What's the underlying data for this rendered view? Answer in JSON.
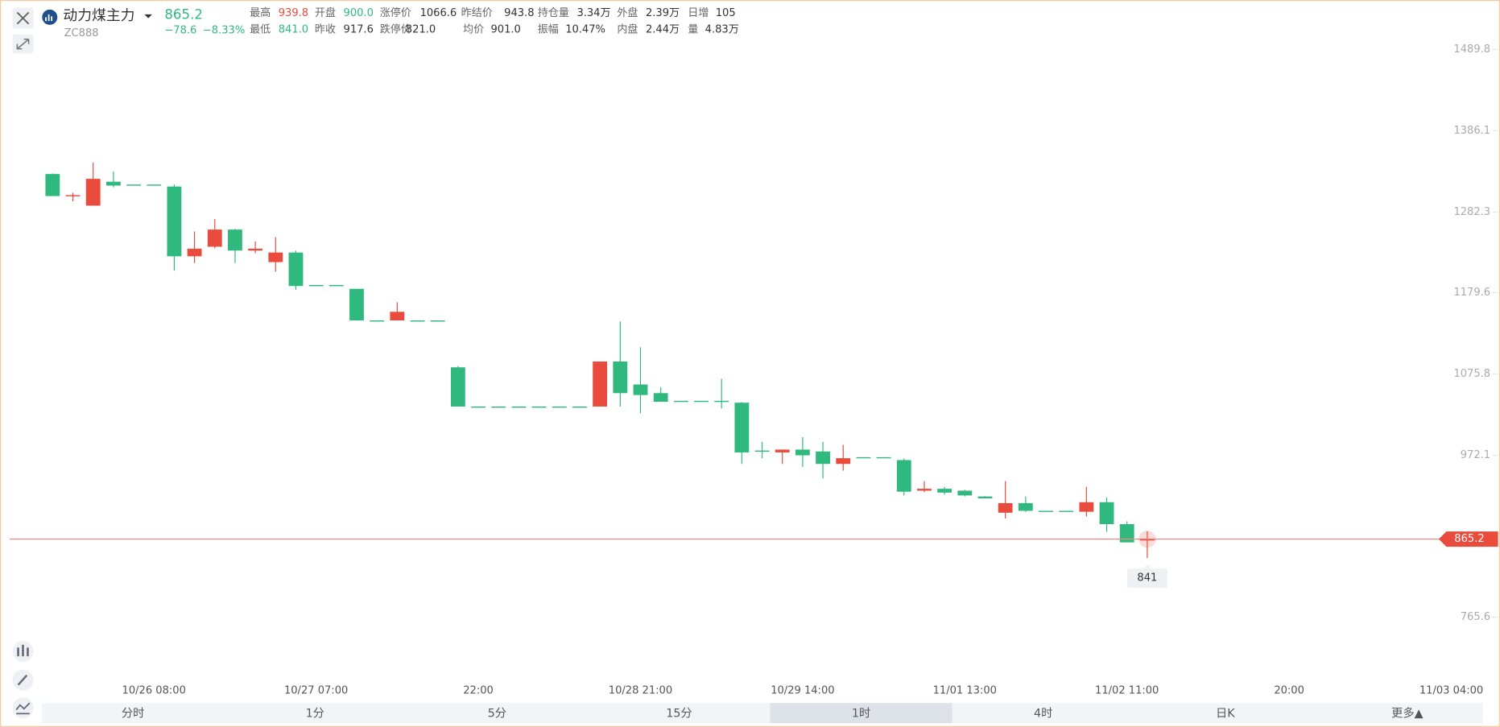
{
  "quote": {
    "name": "动力煤主力",
    "last": "865.2",
    "code": "ZC888",
    "change": "−78.6",
    "change_pct": "−8.33%",
    "stats": [
      [
        "最高",
        "939.8"
      ],
      [
        "开盘",
        "900.0"
      ],
      [
        "涨停价",
        "1066.6"
      ],
      [
        "昨结价",
        "943.8"
      ],
      [
        "持仓量",
        "3.34万"
      ],
      [
        "外盘",
        "2.39万"
      ],
      [
        "日增",
        "105"
      ],
      [
        "最低",
        "841.0"
      ],
      [
        "昨收",
        "917.6"
      ],
      [
        "跌停价",
        "821.0"
      ],
      [
        "均价",
        "901.0"
      ],
      [
        "振幅",
        "10.47%"
      ],
      [
        "内盘",
        "2.44万"
      ],
      [
        "量",
        "4.83万"
      ]
    ]
  },
  "tabs": [
    "分时",
    "1分",
    "5分",
    "15分",
    "1时",
    "4时",
    "日K",
    "更多▲"
  ],
  "active_tab": 4,
  "chart_data": {
    "type": "candlestick",
    "up_color": "#e94b3c",
    "down_color": "#2fb97e",
    "ylim": [
      686.6,
      1543.0
    ],
    "yticks": [
      765.6,
      972.1,
      1075.8,
      1179.6,
      1282.3,
      1386.1,
      1489.8
    ],
    "categories": [
      null,
      null,
      null,
      null,
      null,
      "10/26 08:00",
      null,
      null,
      null,
      null,
      null,
      null,
      null,
      "10/27 07:00",
      null,
      null,
      null,
      null,
      null,
      null,
      null,
      "22:00",
      null,
      null,
      null,
      null,
      null,
      null,
      null,
      "10/28 21:00",
      null,
      null,
      null,
      null,
      null,
      null,
      null,
      "10/29 14:00",
      null,
      null,
      null,
      null,
      null,
      null,
      null,
      "11/01 13:00",
      null,
      null,
      null,
      null,
      null,
      null,
      null,
      "11/02 11:00",
      null,
      null,
      null,
      null,
      null,
      null,
      null,
      "20:00",
      null,
      null,
      null,
      null,
      null,
      null,
      null,
      "11/03 04:00"
    ],
    "open": [
      1330.8,
      1302.7,
      1290.5,
      1321.0,
      1317.4,
      1317.4,
      1314.9,
      1225.9,
      1238.1,
      1260.0,
      1233.2,
      1218.5,
      1230.7,
      1189.3,
      1189.3,
      1184.4,
      1144.1,
      1144.1,
      1144.1,
      1144.1,
      1084.3,
      1034.3,
      1034.3,
      1034.3,
      1034.3,
      1034.3,
      1034.3,
      1034.3,
      1091.7,
      1062.4,
      1051.4,
      1041.6,
      1041.6,
      1041.6,
      1039.2,
      978.2,
      975.8,
      979.4,
      977.0,
      961.1,
      969.7,
      969.7,
      966.0,
      927.0,
      929.4,
      927.0,
      919.6,
      898.9,
      911.1,
      901.3,
      901.3,
      900.1,
      912.3,
      884.3,
      863.5,
      null,
      null,
      null,
      null,
      null,
      null,
      null,
      null,
      null,
      null,
      null,
      null,
      null,
      null,
      null
    ],
    "high": [
      1331.5,
      1307.0,
      1345.4,
      1334.0,
      1317.4,
      1317.4,
      1317.4,
      1257.6,
      1273.4,
      1261.0,
      1245.0,
      1250.3,
      1233.2,
      1189.3,
      1189.3,
      1184.4,
      1144.1,
      1167.3,
      1144.1,
      1144.1,
      1086.0,
      1034.3,
      1034.3,
      1034.3,
      1034.3,
      1034.3,
      1034.3,
      1091.7,
      1142.9,
      1110.0,
      1058.7,
      1041.6,
      1041.6,
      1069.7,
      1040.0,
      989.2,
      979.4,
      995.3,
      989.2,
      985.5,
      969.7,
      969.7,
      968.0,
      939.2,
      932.0,
      928.0,
      920.0,
      939.2,
      919.6,
      901.3,
      901.3,
      931.8,
      918.4,
      887.9,
      875.0,
      null,
      null,
      null,
      null,
      null,
      null,
      null,
      null,
      null,
      null,
      null,
      null,
      null,
      null,
      null
    ],
    "low": [
      1302.7,
      1296.0,
      1290.5,
      1314.0,
      1317.4,
      1317.4,
      1207.6,
      1217.3,
      1236.0,
      1217.3,
      1230.0,
      1206.3,
      1183.2,
      1189.3,
      1189.3,
      1144.1,
      1144.1,
      1144.1,
      1144.1,
      1144.1,
      1034.3,
      1034.3,
      1034.3,
      1034.3,
      1034.3,
      1034.3,
      1034.3,
      1034.3,
      1034.3,
      1025.8,
      1040.4,
      1041.6,
      1041.6,
      1031.9,
      961.1,
      968.4,
      961.1,
      957.5,
      942.8,
      952.6,
      969.7,
      969.7,
      920.9,
      925.0,
      922.0,
      919.6,
      917.2,
      891.6,
      900.0,
      901.3,
      901.3,
      894.0,
      874.5,
      861.1,
      841.0,
      null,
      null,
      null,
      null,
      null,
      null,
      null,
      null,
      null,
      null,
      null,
      null,
      null,
      null,
      null
    ],
    "close": [
      1302.7,
      1303.9,
      1324.7,
      1316.1,
      1317.4,
      1317.4,
      1225.9,
      1235.6,
      1260.0,
      1233.2,
      1235.6,
      1230.7,
      1188.0,
      1189.3,
      1189.3,
      1144.1,
      1144.1,
      1155.1,
      1144.1,
      1144.1,
      1034.3,
      1034.3,
      1034.3,
      1034.3,
      1034.3,
      1034.3,
      1034.3,
      1091.7,
      1051.4,
      1049.0,
      1040.4,
      1041.6,
      1041.6,
      1041.6,
      975.8,
      978.2,
      979.4,
      972.1,
      961.1,
      968.4,
      969.7,
      969.7,
      925.7,
      929.4,
      924.5,
      920.9,
      917.2,
      911.1,
      901.3,
      901.3,
      901.3,
      912.3,
      884.3,
      861.1,
      865.2,
      null,
      null,
      null,
      null,
      null,
      null,
      null,
      null,
      null,
      null,
      null,
      null,
      null,
      null,
      null
    ]
  }
}
